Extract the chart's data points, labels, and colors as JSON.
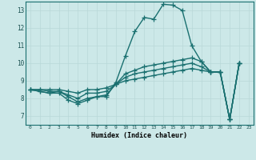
{
  "xlabel": "Humidex (Indice chaleur)",
  "ylabel": "",
  "xlim": [
    -0.5,
    23.5
  ],
  "ylim": [
    6.5,
    13.5
  ],
  "xticks": [
    0,
    1,
    2,
    3,
    4,
    5,
    6,
    7,
    8,
    9,
    10,
    11,
    12,
    13,
    14,
    15,
    16,
    17,
    18,
    19,
    20,
    21,
    22,
    23
  ],
  "yticks": [
    7,
    8,
    9,
    10,
    11,
    12,
    13
  ],
  "bg_color": "#cce8e8",
  "grid_color": "#b8d8d8",
  "line_color": "#1a7070",
  "line_width": 1.0,
  "marker": "+",
  "marker_size": 4,
  "lines": [
    [
      8.5,
      8.4,
      8.3,
      8.3,
      7.9,
      7.7,
      7.9,
      8.1,
      8.1,
      8.9,
      10.4,
      11.8,
      12.6,
      12.5,
      13.35,
      13.3,
      13.0,
      11.0,
      10.1,
      9.5,
      9.5,
      6.8,
      10.0
    ],
    [
      8.5,
      8.4,
      8.3,
      8.4,
      8.1,
      7.8,
      8.0,
      8.1,
      8.2,
      8.8,
      9.4,
      9.6,
      9.8,
      9.9,
      10.0,
      10.1,
      10.2,
      10.3,
      10.1,
      9.5,
      9.5,
      6.8,
      10.0
    ],
    [
      8.5,
      8.5,
      8.4,
      8.4,
      8.2,
      8.0,
      8.3,
      8.3,
      8.4,
      8.8,
      9.2,
      9.4,
      9.5,
      9.6,
      9.7,
      9.8,
      9.9,
      10.0,
      9.8,
      9.5,
      9.5,
      6.8,
      10.0
    ],
    [
      8.5,
      8.5,
      8.5,
      8.5,
      8.4,
      8.3,
      8.5,
      8.5,
      8.6,
      8.8,
      9.0,
      9.1,
      9.2,
      9.3,
      9.4,
      9.5,
      9.6,
      9.7,
      9.6,
      9.5,
      9.5,
      6.8,
      10.0
    ]
  ]
}
